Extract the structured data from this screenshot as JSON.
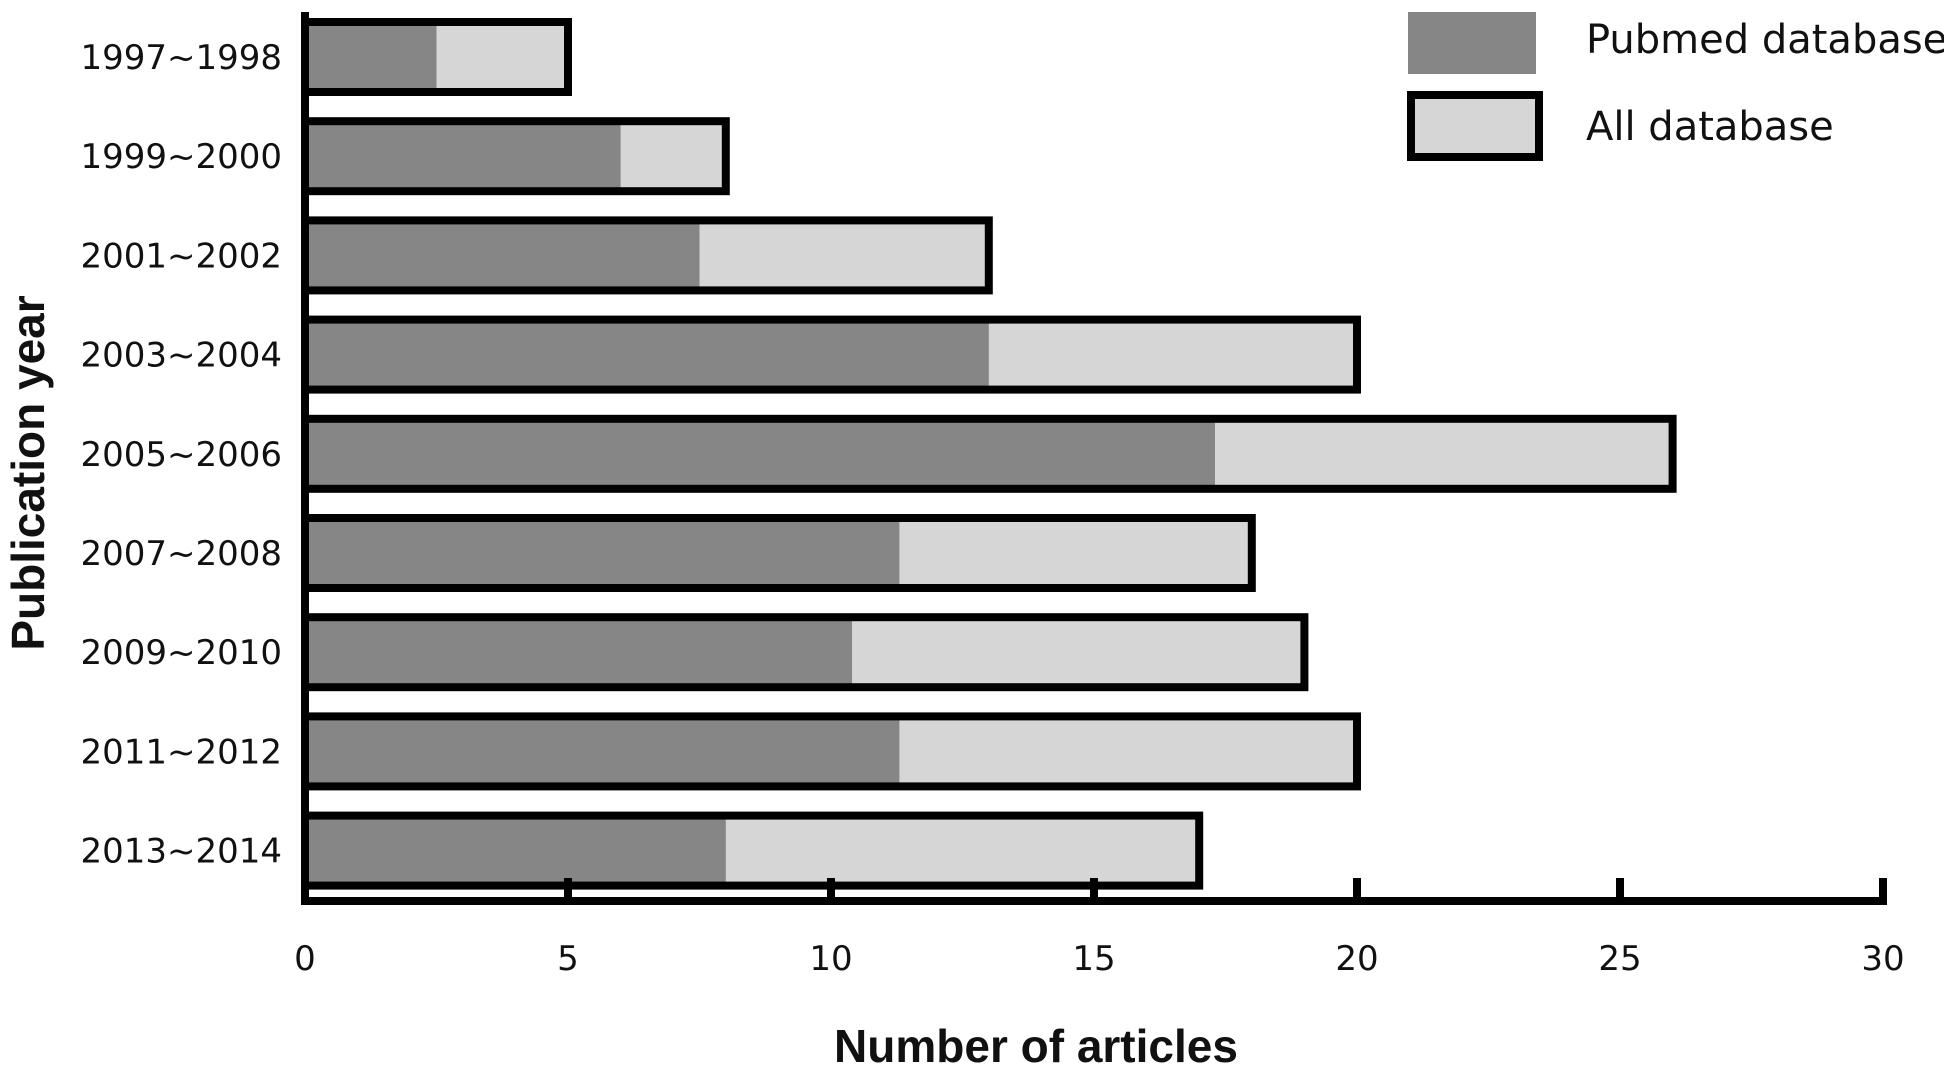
{
  "chart_data": {
    "type": "bar",
    "orientation": "horizontal",
    "categories": [
      "1997~1998",
      "1999~2000",
      "2001~2002",
      "2003~2004",
      "2005~2006",
      "2007~2008",
      "2009~2010",
      "2011~2012",
      "2013~2014"
    ],
    "series": [
      {
        "name": "Pubmed database",
        "values": [
          2.5,
          6,
          7.5,
          13,
          17.3,
          11.3,
          10.4,
          11.3,
          8
        ],
        "color": "#868686"
      },
      {
        "name": "All database",
        "values": [
          5,
          8,
          13,
          20,
          26,
          18,
          19,
          20,
          17
        ],
        "color": "#d6d6d6"
      }
    ],
    "xticks": [
      "0",
      "5",
      "10",
      "15",
      "20",
      "25",
      "30"
    ],
    "xlim": [
      0,
      30
    ],
    "xlabel": "Number of articles",
    "ylabel": "Publication year",
    "legend_position": "top-right",
    "grid": false
  }
}
